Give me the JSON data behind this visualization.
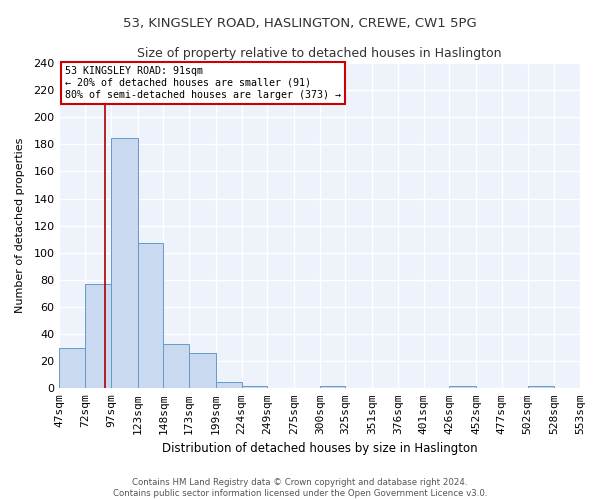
{
  "title1": "53, KINGSLEY ROAD, HASLINGTON, CREWE, CW1 5PG",
  "title2": "Size of property relative to detached houses in Haslington",
  "xlabel": "Distribution of detached houses by size in Haslington",
  "ylabel": "Number of detached properties",
  "footnote": "Contains HM Land Registry data © Crown copyright and database right 2024.\nContains public sector information licensed under the Open Government Licence v3.0.",
  "bin_labels": [
    "47sqm",
    "72sqm",
    "97sqm",
    "123sqm",
    "148sqm",
    "173sqm",
    "199sqm",
    "224sqm",
    "249sqm",
    "275sqm",
    "300sqm",
    "325sqm",
    "351sqm",
    "376sqm",
    "401sqm",
    "426sqm",
    "452sqm",
    "477sqm",
    "502sqm",
    "528sqm",
    "553sqm"
  ],
  "bar_heights": [
    30,
    77,
    185,
    107,
    33,
    26,
    5,
    2,
    0,
    0,
    2,
    0,
    0,
    0,
    0,
    2,
    0,
    0,
    2,
    0
  ],
  "bar_color": "#c9d9ef",
  "bar_edge_color": "#6699cc",
  "vline_x": 91,
  "vline_color": "#aa0000",
  "annotation_text": "53 KINGSLEY ROAD: 91sqm\n← 20% of detached houses are smaller (91)\n80% of semi-detached houses are larger (373) →",
  "annotation_box_color": "#cc0000",
  "ylim": [
    0,
    240
  ],
  "yticks": [
    0,
    20,
    40,
    60,
    80,
    100,
    120,
    140,
    160,
    180,
    200,
    220,
    240
  ],
  "plot_bg_color": "#eef2fa",
  "fig_bg_color": "#ffffff",
  "grid_color": "#ffffff",
  "bin_edges": [
    47,
    72,
    97,
    123,
    148,
    173,
    199,
    224,
    249,
    275,
    300,
    325,
    351,
    376,
    401,
    426,
    452,
    477,
    502,
    528,
    553
  ]
}
